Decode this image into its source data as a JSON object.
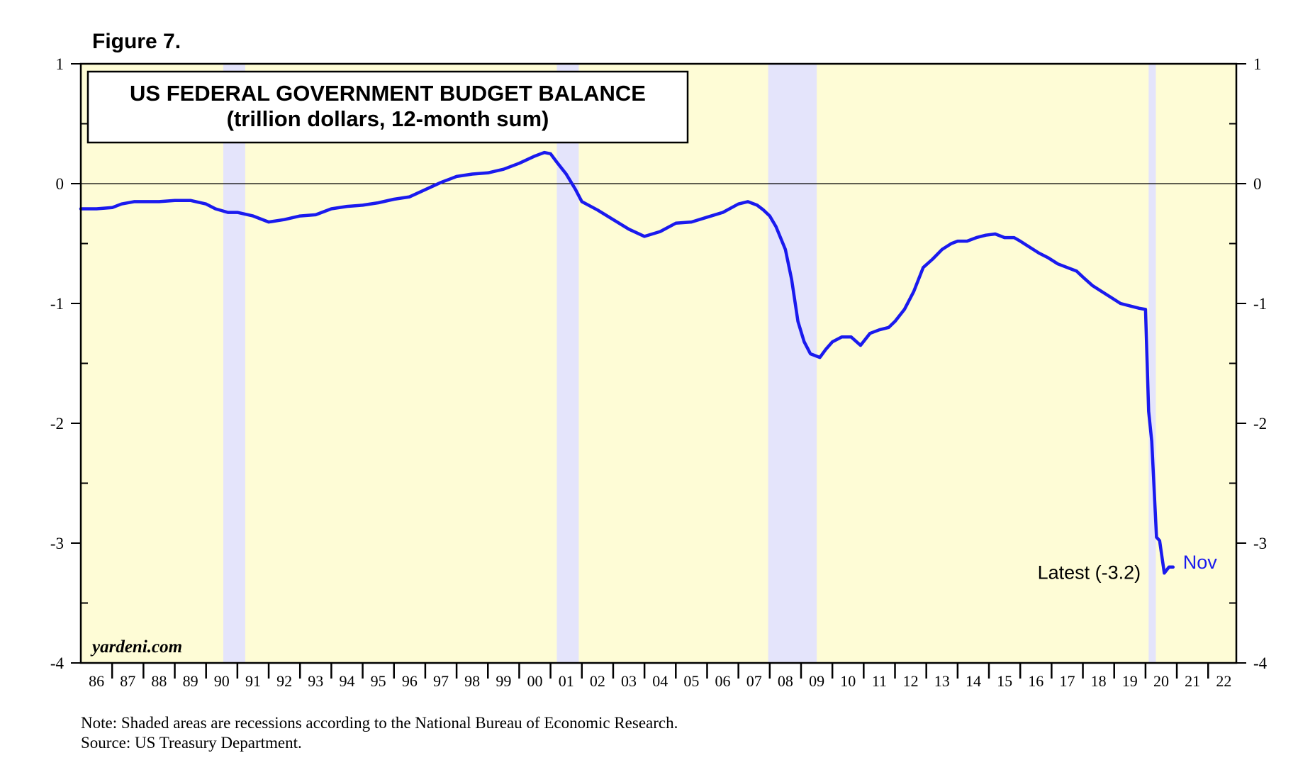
{
  "figure_label": "Figure 7.",
  "note": "Note: Shaded areas are recessions according to the National Bureau of Economic Research.",
  "source": "Source: US Treasury Department.",
  "watermark": "yardeni.com",
  "colors": {
    "plot_bg": "#fefcd6",
    "recession": "#e4e4fb",
    "line": "#1a1aee",
    "nov_label": "#1a1aee"
  },
  "chart_data": {
    "type": "line",
    "title": "US FEDERAL GOVERNMENT BUDGET BALANCE",
    "subtitle": "(trillion dollars, 12-month sum)",
    "x_range": [
      1986,
      2022.9
    ],
    "ylim": [
      -4,
      1
    ],
    "yticks": [
      1,
      0,
      -1,
      -2,
      -3,
      -4
    ],
    "y_tick_labels": [
      "1",
      "0",
      "-1",
      "-2",
      "-3",
      "-4"
    ],
    "x_tick_labels": [
      "86",
      "87",
      "88",
      "89",
      "90",
      "91",
      "92",
      "93",
      "94",
      "95",
      "96",
      "97",
      "98",
      "99",
      "00",
      "01",
      "02",
      "03",
      "04",
      "05",
      "06",
      "07",
      "08",
      "09",
      "10",
      "11",
      "12",
      "13",
      "14",
      "15",
      "16",
      "17",
      "18",
      "19",
      "20",
      "21",
      "22"
    ],
    "grid": false,
    "zero_line": true,
    "recessions": [
      {
        "start": 1990.55,
        "end": 1991.25
      },
      {
        "start": 2001.2,
        "end": 2001.9
      },
      {
        "start": 2007.95,
        "end": 2009.5
      },
      {
        "start": 2020.1,
        "end": 2020.33
      }
    ],
    "annotations": {
      "latest_label": "Latest (-3.2)",
      "latest_label_pos": [
        2018.2,
        -3.3
      ],
      "end_label": "Nov"
    },
    "series": [
      {
        "x": [
          1986.0,
          1986.5,
          1987.0,
          1987.3,
          1987.7,
          1988.0,
          1988.5,
          1989.0,
          1989.5,
          1990.0,
          1990.3,
          1990.7,
          1991.0,
          1991.5,
          1992.0,
          1992.5,
          1993.0,
          1993.5,
          1994.0,
          1994.5,
          1995.0,
          1995.5,
          1996.0,
          1996.5,
          1997.0,
          1997.5,
          1998.0,
          1998.5,
          1999.0,
          1999.5,
          2000.0,
          2000.5,
          2000.8,
          2001.0,
          2001.2,
          2001.5,
          2001.8,
          2002.0,
          2002.5,
          2003.0,
          2003.5,
          2004.0,
          2004.5,
          2005.0,
          2005.5,
          2006.0,
          2006.5,
          2007.0,
          2007.3,
          2007.6,
          2007.8,
          2008.0,
          2008.2,
          2008.5,
          2008.7,
          2008.9,
          2009.1,
          2009.3,
          2009.6,
          2009.8,
          2010.0,
          2010.3,
          2010.6,
          2010.9,
          2011.2,
          2011.5,
          2011.8,
          2012.0,
          2012.3,
          2012.6,
          2012.9,
          2013.2,
          2013.5,
          2013.8,
          2014.0,
          2014.3,
          2014.6,
          2014.9,
          2015.2,
          2015.5,
          2015.8,
          2016.0,
          2016.3,
          2016.6,
          2016.9,
          2017.2,
          2017.5,
          2017.8,
          2018.0,
          2018.3,
          2018.6,
          2018.9,
          2019.2,
          2019.5,
          2019.8,
          2020.0,
          2020.1,
          2020.2,
          2020.35,
          2020.45,
          2020.6,
          2020.75,
          2020.88
        ],
        "y": [
          -0.21,
          -0.21,
          -0.2,
          -0.17,
          -0.15,
          -0.15,
          -0.15,
          -0.14,
          -0.14,
          -0.17,
          -0.21,
          -0.24,
          -0.24,
          -0.27,
          -0.32,
          -0.3,
          -0.27,
          -0.26,
          -0.21,
          -0.19,
          -0.18,
          -0.16,
          -0.13,
          -0.11,
          -0.05,
          0.01,
          0.06,
          0.08,
          0.09,
          0.12,
          0.17,
          0.23,
          0.26,
          0.25,
          0.18,
          0.08,
          -0.05,
          -0.15,
          -0.22,
          -0.3,
          -0.38,
          -0.44,
          -0.4,
          -0.33,
          -0.32,
          -0.28,
          -0.24,
          -0.17,
          -0.15,
          -0.18,
          -0.22,
          -0.27,
          -0.36,
          -0.55,
          -0.8,
          -1.15,
          -1.32,
          -1.42,
          -1.45,
          -1.38,
          -1.32,
          -1.28,
          -1.28,
          -1.35,
          -1.25,
          -1.22,
          -1.2,
          -1.15,
          -1.05,
          -0.9,
          -0.7,
          -0.63,
          -0.55,
          -0.5,
          -0.48,
          -0.48,
          -0.45,
          -0.43,
          -0.42,
          -0.45,
          -0.45,
          -0.48,
          -0.53,
          -0.58,
          -0.62,
          -0.67,
          -0.7,
          -0.73,
          -0.78,
          -0.85,
          -0.9,
          -0.95,
          -1.0,
          -1.02,
          -1.04,
          -1.05,
          -1.9,
          -2.15,
          -2.95,
          -2.98,
          -3.25,
          -3.2,
          -3.2
        ]
      }
    ]
  }
}
